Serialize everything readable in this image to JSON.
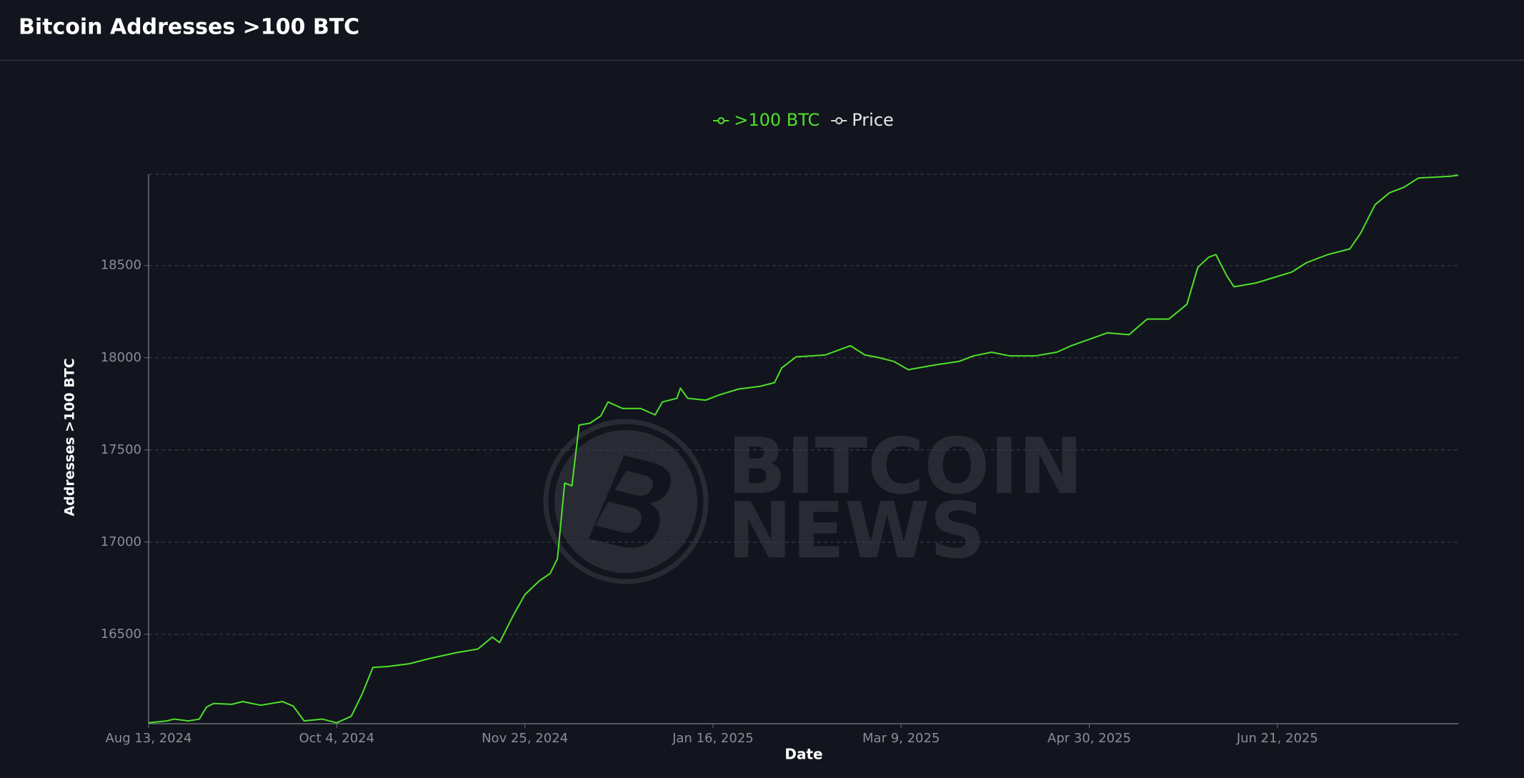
{
  "chart_data": {
    "type": "line",
    "title": "Bitcoin Addresses >100 BTC",
    "x_label": "Date",
    "y_label": "Addresses >100 BTC",
    "watermark": [
      "BITCOIN",
      "NEWS"
    ],
    "xlim": [
      "2024-08-13",
      "2025-08-10"
    ],
    "ylim": [
      16015,
      18995
    ],
    "yticks": [
      16500,
      17000,
      17500,
      18000,
      18500
    ],
    "xticks": [
      {
        "value": "2024-08-13",
        "label": "Aug 13, 2024"
      },
      {
        "value": "2024-10-04",
        "label": "Oct 4, 2024"
      },
      {
        "value": "2024-11-25",
        "label": "Nov 25, 2024"
      },
      {
        "value": "2025-01-16",
        "label": "Jan 16, 2025"
      },
      {
        "value": "2025-03-09",
        "label": "Mar 9, 2025"
      },
      {
        "value": "2025-04-30",
        "label": "Apr 30, 2025"
      },
      {
        "value": "2025-06-21",
        "label": "Jun 21, 2025"
      }
    ],
    "grid": true,
    "legend": "top-center",
    "x": [
      "2024-08-13",
      "2024-08-18",
      "2024-08-20",
      "2024-08-24",
      "2024-08-27",
      "2024-08-29",
      "2024-08-31",
      "2024-09-05",
      "2024-09-08",
      "2024-09-13",
      "2024-09-19",
      "2024-09-22",
      "2024-09-25",
      "2024-09-30",
      "2024-10-04",
      "2024-10-08",
      "2024-10-11",
      "2024-10-14",
      "2024-10-18",
      "2024-10-24",
      "2024-10-30",
      "2024-11-06",
      "2024-11-12",
      "2024-11-16",
      "2024-11-18",
      "2024-11-22",
      "2024-11-25",
      "2024-11-29",
      "2024-12-02",
      "2024-12-04",
      "2024-12-06",
      "2024-12-08",
      "2024-12-10",
      "2024-12-13",
      "2024-12-16",
      "2024-12-18",
      "2024-12-22",
      "2024-12-27",
      "2024-12-31",
      "2025-01-02",
      "2025-01-06",
      "2025-01-07",
      "2025-01-09",
      "2025-01-14",
      "2025-01-18",
      "2025-01-23",
      "2025-01-29",
      "2025-02-02",
      "2025-02-04",
      "2025-02-08",
      "2025-02-16",
      "2025-02-23",
      "2025-02-27",
      "2025-03-03",
      "2025-03-07",
      "2025-03-11",
      "2025-03-18",
      "2025-03-25",
      "2025-03-29",
      "2025-04-03",
      "2025-04-08",
      "2025-04-15",
      "2025-04-21",
      "2025-04-25",
      "2025-04-30",
      "2025-05-05",
      "2025-05-11",
      "2025-05-16",
      "2025-05-22",
      "2025-05-27",
      "2025-05-30",
      "2025-06-02",
      "2025-06-04",
      "2025-06-07",
      "2025-06-09",
      "2025-06-15",
      "2025-06-20",
      "2025-06-25",
      "2025-06-29",
      "2025-07-05",
      "2025-07-11",
      "2025-07-14",
      "2025-07-18",
      "2025-07-22",
      "2025-07-26",
      "2025-07-30",
      "2025-08-04",
      "2025-08-08",
      "2025-08-10"
    ],
    "series": [
      {
        "name": ">100 BTC",
        "color": "#4fe02a",
        "values": [
          16020,
          16030,
          16040,
          16030,
          16040,
          16105,
          16125,
          16120,
          16135,
          16115,
          16135,
          16110,
          16030,
          16040,
          16020,
          16055,
          16175,
          16320,
          16325,
          16340,
          16370,
          16400,
          16420,
          16485,
          16455,
          16610,
          16715,
          16790,
          16830,
          16910,
          17320,
          17305,
          17635,
          17645,
          17685,
          17760,
          17725,
          17725,
          17690,
          17760,
          17780,
          17835,
          17780,
          17770,
          17800,
          17830,
          17845,
          17865,
          17945,
          18005,
          18015,
          18065,
          18015,
          18000,
          17980,
          17935,
          17960,
          17980,
          18010,
          18030,
          18010,
          18010,
          18030,
          18065,
          18100,
          18135,
          18125,
          18210,
          18210,
          18290,
          18490,
          18545,
          18560,
          18445,
          18385,
          18405,
          18435,
          18465,
          18515,
          18560,
          18590,
          18675,
          18830,
          18895,
          18925,
          18975,
          18980,
          18985,
          18990
        ]
      },
      {
        "name": "Price",
        "color": "#d8d8d8",
        "hidden": true,
        "values": [
          null,
          null,
          null,
          null,
          null,
          null,
          null,
          null,
          null,
          null,
          null,
          null,
          null,
          null,
          null,
          null,
          null,
          null,
          null,
          null,
          null,
          null,
          null,
          null,
          null,
          null,
          null,
          null,
          null,
          null,
          null,
          null,
          null,
          null,
          null,
          null,
          null,
          null,
          null,
          null,
          null,
          null,
          null,
          null,
          null,
          null,
          null,
          null,
          null,
          null,
          null,
          null,
          null,
          null,
          null,
          null,
          null,
          null,
          null,
          null,
          null,
          null,
          null,
          null,
          null,
          null,
          null,
          null,
          null,
          null,
          null,
          null,
          null,
          null,
          null,
          null,
          null,
          null,
          null,
          null,
          null,
          null,
          null,
          null,
          null,
          null,
          null,
          null,
          null
        ]
      }
    ]
  }
}
